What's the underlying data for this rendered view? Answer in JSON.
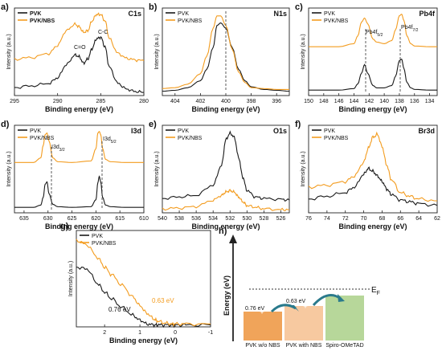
{
  "figure": {
    "panels": [
      {
        "letter": "a)",
        "title": "C1s",
        "xlabel": "Binding energy (eV)",
        "ylabel": "Intensity (a.u.)",
        "xticks": [
          "295",
          "290",
          "285",
          "280"
        ],
        "annotations": [
          "C=O",
          "C-C"
        ]
      },
      {
        "letter": "b)",
        "title": "N1s",
        "xlabel": "Binding energy (eV)",
        "ylabel": "Intensity (a.u.)",
        "xticks": [
          "404",
          "402",
          "400",
          "398",
          "396"
        ],
        "annotations": []
      },
      {
        "letter": "c)",
        "title": "Pb4f",
        "xlabel": "Binding energy (eV)",
        "ylabel": "Intensity (a.u.)",
        "xticks": [
          "150",
          "148",
          "146",
          "144",
          "142",
          "140",
          "138",
          "136",
          "134"
        ],
        "annotations": [
          {
            "main": "Pb4f",
            "sub": "5/2"
          },
          {
            "main": "Pb4f",
            "sub": "7/2"
          }
        ]
      },
      {
        "letter": "d)",
        "title": "I3d",
        "xlabel": "Binding energy (eV)",
        "ylabel": "Intensity (a.u.)",
        "xticks": [
          "635",
          "630",
          "625",
          "620",
          "615",
          "610"
        ],
        "annotations": [
          {
            "main": "I3d",
            "sub": "3/2"
          },
          {
            "main": "I3d",
            "sub": "5/2"
          }
        ]
      },
      {
        "letter": "e)",
        "title": "O1s",
        "xlabel": "Binding energy (eV)",
        "ylabel": "Intensity (a.u.)",
        "xticks": [
          "540",
          "538",
          "536",
          "534",
          "532",
          "530",
          "528",
          "526"
        ],
        "annotations": []
      },
      {
        "letter": "f)",
        "title": "Br3d",
        "xlabel": "Binding energy (eV)",
        "ylabel": "Intensity (a.u.)",
        "xticks": [
          "76",
          "74",
          "72",
          "70",
          "68",
          "66",
          "64",
          "62"
        ],
        "annotations": []
      },
      {
        "letter": "g)",
        "title": "",
        "xlabel": "Binding energy (eV)",
        "ylabel": "Intensity (a.u.)",
        "xticks": [
          "2",
          "1",
          "0",
          "-1"
        ],
        "annotations": [
          "0.76 eV",
          "0.63 eV"
        ]
      }
    ],
    "legend": [
      "PVK",
      "PVK/NBS"
    ],
    "colors": {
      "pvk": "#1a1a1a",
      "nbs": "#f39c1f",
      "arrow": "#2a7a8c"
    },
    "energy_diagram": {
      "letter": "h)",
      "ylabel": "Energy (eV)",
      "fermi": "E",
      "fermi_sub": "F",
      "boxes": [
        {
          "label": "PVK w/o NBS",
          "gap": "0.76 eV",
          "color": "#f0a45a"
        },
        {
          "label": "PVK with NBS",
          "gap": "0.63 eV",
          "color": "#f7c9a0"
        },
        {
          "label": "Spiro-OMeTAD",
          "color": "#b7d79a"
        }
      ]
    }
  },
  "chart_data": [
    {
      "type": "line",
      "title": "C1s",
      "xlabel": "Binding energy (eV)",
      "ylabel": "Intensity (a.u.)",
      "xlim": [
        295,
        280
      ],
      "x": [
        295,
        293,
        291,
        290,
        289,
        288,
        287.5,
        287,
        286.5,
        286,
        285.5,
        285,
        284.5,
        284,
        283,
        282,
        281,
        280
      ],
      "series": [
        {
          "name": "PVK",
          "values": [
            0.1,
            0.12,
            0.15,
            0.22,
            0.38,
            0.5,
            0.48,
            0.4,
            0.45,
            0.58,
            0.7,
            0.72,
            0.6,
            0.35,
            0.15,
            0.08,
            0.05,
            0.04
          ]
        },
        {
          "name": "PVK/NBS",
          "values": [
            0.45,
            0.47,
            0.52,
            0.62,
            0.8,
            0.88,
            0.85,
            0.78,
            0.8,
            0.92,
            1.0,
            1.0,
            0.92,
            0.7,
            0.52,
            0.46,
            0.44,
            0.43
          ]
        }
      ]
    },
    {
      "type": "line",
      "title": "N1s",
      "xlabel": "Binding energy (eV)",
      "ylabel": "Intensity (a.u.)",
      "xlim": [
        405,
        395
      ],
      "x": [
        405,
        404,
        403,
        402,
        401.5,
        401,
        400.7,
        400.4,
        400,
        399.5,
        399,
        398.5,
        398,
        397,
        396,
        395
      ],
      "series": [
        {
          "name": "PVK",
          "values": [
            0.1,
            0.11,
            0.14,
            0.22,
            0.35,
            0.6,
            0.85,
            0.88,
            0.82,
            0.6,
            0.35,
            0.22,
            0.15,
            0.12,
            0.11,
            0.1
          ]
        },
        {
          "name": "PVK/NBS",
          "values": [
            0.13,
            0.14,
            0.18,
            0.3,
            0.5,
            0.82,
            0.96,
            0.96,
            0.85,
            0.58,
            0.32,
            0.2,
            0.14,
            0.13,
            0.12,
            0.12
          ]
        }
      ]
    },
    {
      "type": "line",
      "title": "Pb4f",
      "xlabel": "Binding energy (eV)",
      "ylabel": "Intensity (a.u.)",
      "xlim": [
        150,
        133
      ],
      "x": [
        150,
        146,
        144,
        143.5,
        143,
        142.6,
        142.2,
        141.5,
        141,
        140,
        139,
        138.5,
        138,
        137.7,
        137.4,
        137,
        136.5,
        136,
        134,
        133
      ],
      "series": [
        {
          "name": "PVK",
          "values": [
            0.02,
            0.02,
            0.04,
            0.1,
            0.24,
            0.35,
            0.24,
            0.08,
            0.05,
            0.05,
            0.08,
            0.2,
            0.4,
            0.42,
            0.3,
            0.12,
            0.05,
            0.03,
            0.02,
            0.02
          ]
        },
        {
          "name": "PVK/NBS",
          "values": [
            0.58,
            0.58,
            0.62,
            0.72,
            0.9,
            0.95,
            0.88,
            0.68,
            0.64,
            0.62,
            0.66,
            0.8,
            0.98,
            1.0,
            0.92,
            0.72,
            0.62,
            0.59,
            0.58,
            0.58
          ]
        }
      ]
    },
    {
      "type": "line",
      "title": "I3d",
      "xlabel": "Binding energy (eV)",
      "ylabel": "Intensity (a.u.)",
      "xlim": [
        637,
        610
      ],
      "x": [
        637,
        633,
        631.5,
        631,
        630.6,
        630.2,
        629.8,
        629,
        628,
        625,
        621,
        620,
        619.6,
        619.3,
        619,
        618.6,
        618,
        617,
        614,
        610
      ],
      "series": [
        {
          "name": "PVK",
          "values": [
            0.02,
            0.02,
            0.05,
            0.15,
            0.32,
            0.35,
            0.2,
            0.06,
            0.03,
            0.02,
            0.03,
            0.12,
            0.34,
            0.42,
            0.35,
            0.15,
            0.05,
            0.03,
            0.02,
            0.02
          ]
        },
        {
          "name": "PVK/NBS",
          "values": [
            0.6,
            0.6,
            0.66,
            0.82,
            0.96,
            0.98,
            0.88,
            0.66,
            0.61,
            0.6,
            0.62,
            0.78,
            0.98,
            1.0,
            0.96,
            0.78,
            0.64,
            0.61,
            0.6,
            0.6
          ]
        }
      ]
    },
    {
      "type": "line",
      "title": "O1s",
      "xlabel": "Binding energy (eV)",
      "ylabel": "Intensity (a.u.)",
      "xlim": [
        540,
        525
      ],
      "x": [
        540,
        538,
        536,
        534,
        533,
        532.5,
        532,
        531.5,
        531,
        530.5,
        530,
        529,
        528,
        526,
        525
      ],
      "series": [
        {
          "name": "PVK",
          "values": [
            0.18,
            0.2,
            0.22,
            0.35,
            0.6,
            0.92,
            1.0,
            0.95,
            0.7,
            0.45,
            0.28,
            0.2,
            0.18,
            0.17,
            0.16
          ]
        },
        {
          "name": "PVK/NBS",
          "values": [
            0.05,
            0.06,
            0.08,
            0.16,
            0.22,
            0.26,
            0.28,
            0.26,
            0.2,
            0.14,
            0.09,
            0.07,
            0.05,
            0.04,
            0.04
          ]
        }
      ]
    },
    {
      "type": "line",
      "title": "Br3d",
      "xlabel": "Binding energy (eV)",
      "ylabel": "Intensity (a.u.)",
      "xlim": [
        76,
        62
      ],
      "x": [
        76,
        74,
        72,
        71,
        70,
        69.5,
        69,
        68.5,
        68,
        67.5,
        67,
        66,
        65,
        64,
        62
      ],
      "series": [
        {
          "name": "PVK",
          "values": [
            0.15,
            0.18,
            0.22,
            0.28,
            0.42,
            0.48,
            0.45,
            0.4,
            0.34,
            0.26,
            0.2,
            0.14,
            0.12,
            0.1,
            0.08
          ]
        },
        {
          "name": "PVK/NBS",
          "values": [
            0.28,
            0.3,
            0.34,
            0.4,
            0.55,
            0.7,
            0.82,
            0.85,
            0.72,
            0.52,
            0.36,
            0.22,
            0.18,
            0.15,
            0.13
          ]
        }
      ]
    },
    {
      "type": "line",
      "title": "",
      "xlabel": "Binding energy (eV)",
      "ylabel": "Intensity (a.u.)",
      "xlim": [
        2.8,
        -1
      ],
      "x": [
        2.8,
        2.5,
        2.2,
        2.0,
        1.8,
        1.5,
        1.2,
        1.0,
        0.8,
        0.6,
        0.5,
        0.3,
        0.1,
        0.0,
        -0.3,
        -1.0
      ],
      "series": [
        {
          "name": "PVK",
          "values": [
            0.62,
            0.6,
            0.45,
            0.36,
            0.29,
            0.2,
            0.12,
            0.07,
            0.03,
            0.02,
            0.02,
            0.02,
            0.02,
            0.02,
            0.02,
            0.02
          ]
        },
        {
          "name": "PVK/NBS",
          "values": [
            0.9,
            0.85,
            0.72,
            0.62,
            0.54,
            0.43,
            0.31,
            0.22,
            0.14,
            0.08,
            0.06,
            0.04,
            0.03,
            0.03,
            0.03,
            0.03
          ]
        }
      ]
    }
  ]
}
